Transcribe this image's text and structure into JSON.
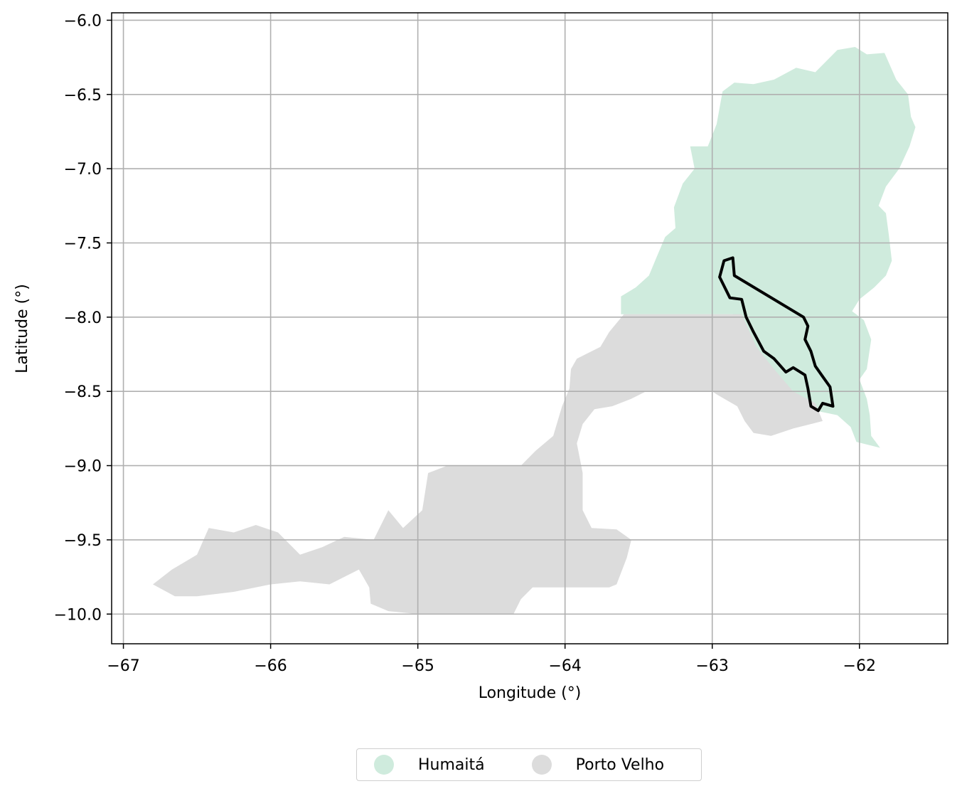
{
  "chart_data": {
    "type": "map",
    "xlabel": "Longitude (°)",
    "ylabel": "Latitude (°)",
    "xlim": [
      -67.08,
      -61.4
    ],
    "ylim": [
      -10.2,
      -5.95
    ],
    "xticks": [
      -67,
      -66,
      -65,
      -64,
      -63,
      -62
    ],
    "xtick_labels": [
      "−67",
      "−66",
      "−65",
      "−64",
      "−63",
      "−62"
    ],
    "yticks": [
      -6.0,
      -6.5,
      -7.0,
      -7.5,
      -8.0,
      -8.5,
      -9.0,
      -9.5,
      -10.0
    ],
    "ytick_labels": [
      "−6.0",
      "−6.5",
      "−7.0",
      "−7.5",
      "−8.0",
      "−8.5",
      "−9.0",
      "−9.5",
      "−10.0"
    ],
    "grid": true,
    "legend_position": "bottom-center",
    "regions": [
      {
        "name": "Humaitá",
        "color": "#cfebdd",
        "polygon": [
          [
            -63.62,
            -7.98
          ],
          [
            -63.62,
            -7.86
          ],
          [
            -63.52,
            -7.8
          ],
          [
            -63.43,
            -7.72
          ],
          [
            -63.38,
            -7.6
          ],
          [
            -63.32,
            -7.46
          ],
          [
            -63.25,
            -7.4
          ],
          [
            -63.26,
            -7.26
          ],
          [
            -63.2,
            -7.1
          ],
          [
            -63.12,
            -7.0
          ],
          [
            -63.15,
            -6.85
          ],
          [
            -63.03,
            -6.85
          ],
          [
            -62.97,
            -6.7
          ],
          [
            -62.93,
            -6.48
          ],
          [
            -62.85,
            -6.42
          ],
          [
            -62.72,
            -6.43
          ],
          [
            -62.58,
            -6.4
          ],
          [
            -62.43,
            -6.32
          ],
          [
            -62.3,
            -6.35
          ],
          [
            -62.15,
            -6.2
          ],
          [
            -62.03,
            -6.18
          ],
          [
            -61.95,
            -6.23
          ],
          [
            -61.83,
            -6.22
          ],
          [
            -61.75,
            -6.4
          ],
          [
            -61.67,
            -6.5
          ],
          [
            -61.65,
            -6.65
          ],
          [
            -61.62,
            -6.72
          ],
          [
            -61.66,
            -6.85
          ],
          [
            -61.73,
            -7.0
          ],
          [
            -61.82,
            -7.12
          ],
          [
            -61.87,
            -7.25
          ],
          [
            -61.82,
            -7.3
          ],
          [
            -61.8,
            -7.45
          ],
          [
            -61.78,
            -7.62
          ],
          [
            -61.82,
            -7.72
          ],
          [
            -61.9,
            -7.8
          ],
          [
            -62.0,
            -7.88
          ],
          [
            -62.05,
            -7.96
          ],
          [
            -61.97,
            -8.02
          ],
          [
            -61.92,
            -8.15
          ],
          [
            -61.95,
            -8.35
          ],
          [
            -62.0,
            -8.42
          ],
          [
            -61.95,
            -8.55
          ],
          [
            -61.93,
            -8.66
          ],
          [
            -61.92,
            -8.8
          ],
          [
            -61.86,
            -8.88
          ],
          [
            -62.02,
            -8.84
          ],
          [
            -62.06,
            -8.74
          ],
          [
            -62.15,
            -8.66
          ],
          [
            -62.3,
            -8.63
          ],
          [
            -62.4,
            -8.55
          ],
          [
            -62.55,
            -8.4
          ],
          [
            -62.68,
            -8.24
          ],
          [
            -62.8,
            -8.1
          ],
          [
            -62.86,
            -7.98
          ]
        ]
      },
      {
        "name": "Porto Velho",
        "color": "#dcdcdc",
        "polygon": [
          [
            -63.6,
            -7.98
          ],
          [
            -62.8,
            -7.98
          ],
          [
            -62.7,
            -8.2
          ],
          [
            -62.58,
            -8.35
          ],
          [
            -62.45,
            -8.5
          ],
          [
            -62.3,
            -8.58
          ],
          [
            -62.25,
            -8.7
          ],
          [
            -62.45,
            -8.75
          ],
          [
            -62.6,
            -8.8
          ],
          [
            -62.72,
            -8.78
          ],
          [
            -62.78,
            -8.7
          ],
          [
            -62.83,
            -8.6
          ],
          [
            -62.97,
            -8.52
          ],
          [
            -63.0,
            -8.5
          ],
          [
            -63.45,
            -8.5
          ],
          [
            -63.55,
            -8.55
          ],
          [
            -63.68,
            -8.6
          ],
          [
            -63.8,
            -8.62
          ],
          [
            -63.88,
            -8.72
          ],
          [
            -63.92,
            -8.85
          ],
          [
            -63.88,
            -9.05
          ],
          [
            -63.88,
            -9.3
          ],
          [
            -63.82,
            -9.42
          ],
          [
            -63.65,
            -9.43
          ],
          [
            -63.55,
            -9.5
          ],
          [
            -63.58,
            -9.62
          ],
          [
            -63.65,
            -9.8
          ],
          [
            -63.7,
            -9.82
          ],
          [
            -64.22,
            -9.82
          ],
          [
            -64.3,
            -9.9
          ],
          [
            -64.35,
            -10.0
          ],
          [
            -65.0,
            -10.0
          ],
          [
            -65.2,
            -9.98
          ],
          [
            -65.32,
            -9.93
          ],
          [
            -65.33,
            -9.82
          ],
          [
            -65.4,
            -9.7
          ],
          [
            -65.6,
            -9.8
          ],
          [
            -65.8,
            -9.78
          ],
          [
            -66.0,
            -9.8
          ],
          [
            -66.25,
            -9.85
          ],
          [
            -66.5,
            -9.88
          ],
          [
            -66.65,
            -9.88
          ],
          [
            -66.8,
            -9.8
          ],
          [
            -66.67,
            -9.7
          ],
          [
            -66.5,
            -9.6
          ],
          [
            -66.42,
            -9.42
          ],
          [
            -66.25,
            -9.45
          ],
          [
            -66.1,
            -9.4
          ],
          [
            -65.95,
            -9.45
          ],
          [
            -65.8,
            -9.6
          ],
          [
            -65.65,
            -9.55
          ],
          [
            -65.5,
            -9.48
          ],
          [
            -65.3,
            -9.5
          ],
          [
            -65.2,
            -9.3
          ],
          [
            -65.1,
            -9.42
          ],
          [
            -64.97,
            -9.3
          ],
          [
            -64.93,
            -9.05
          ],
          [
            -64.8,
            -9.0
          ],
          [
            -64.5,
            -9.0
          ],
          [
            -64.3,
            -9.0
          ],
          [
            -64.2,
            -8.9
          ],
          [
            -64.08,
            -8.8
          ],
          [
            -64.02,
            -8.6
          ],
          [
            -63.97,
            -8.48
          ],
          [
            -63.96,
            -8.35
          ],
          [
            -63.92,
            -8.28
          ],
          [
            -63.76,
            -8.2
          ],
          [
            -63.7,
            -8.1
          ]
        ]
      }
    ],
    "highlighted_boundary": {
      "stroke": "#000000",
      "polygon": [
        [
          -62.92,
          -7.62
        ],
        [
          -62.86,
          -7.6
        ],
        [
          -62.85,
          -7.72
        ],
        [
          -62.38,
          -8.0
        ],
        [
          -62.35,
          -8.06
        ],
        [
          -62.37,
          -8.15
        ],
        [
          -62.33,
          -8.23
        ],
        [
          -62.3,
          -8.33
        ],
        [
          -62.25,
          -8.4
        ],
        [
          -62.2,
          -8.47
        ],
        [
          -62.18,
          -8.6
        ],
        [
          -62.25,
          -8.58
        ],
        [
          -62.28,
          -8.63
        ],
        [
          -62.33,
          -8.6
        ],
        [
          -62.35,
          -8.48
        ],
        [
          -62.37,
          -8.39
        ],
        [
          -62.45,
          -8.34
        ],
        [
          -62.5,
          -8.37
        ],
        [
          -62.58,
          -8.28
        ],
        [
          -62.65,
          -8.23
        ],
        [
          -62.72,
          -8.1
        ],
        [
          -62.77,
          -8.0
        ],
        [
          -62.8,
          -7.88
        ],
        [
          -62.88,
          -7.87
        ],
        [
          -62.95,
          -7.73
        ]
      ]
    }
  }
}
